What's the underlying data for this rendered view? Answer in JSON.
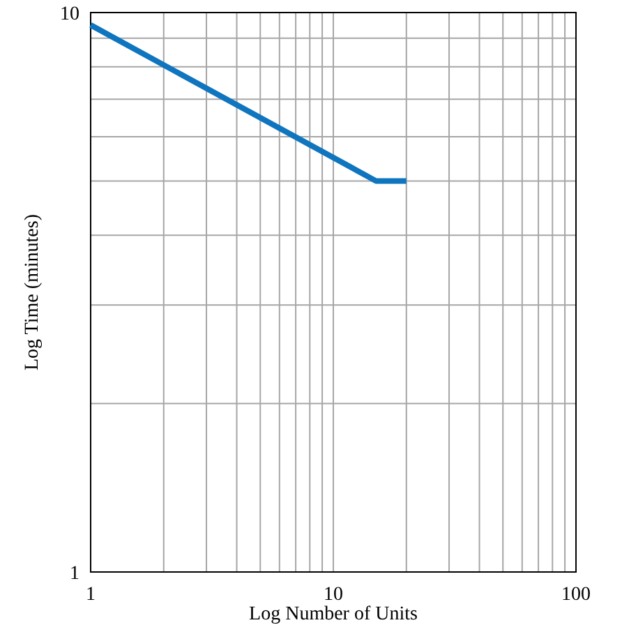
{
  "chart_data": {
    "type": "line",
    "xlabel": "Log Number of Units",
    "ylabel": "Log Time (minutes)",
    "log": "xy",
    "grid": true,
    "line_style": "solid",
    "marker": "none",
    "xlim": [
      1,
      100
    ],
    "ylim": [
      1,
      10
    ],
    "xticks": [
      1,
      10,
      100
    ],
    "yticks": [
      1,
      10
    ],
    "series": [
      {
        "color": "#0f75bf",
        "x": [
          1,
          15,
          20
        ],
        "values": [
          9.5,
          5,
          5
        ]
      }
    ]
  }
}
